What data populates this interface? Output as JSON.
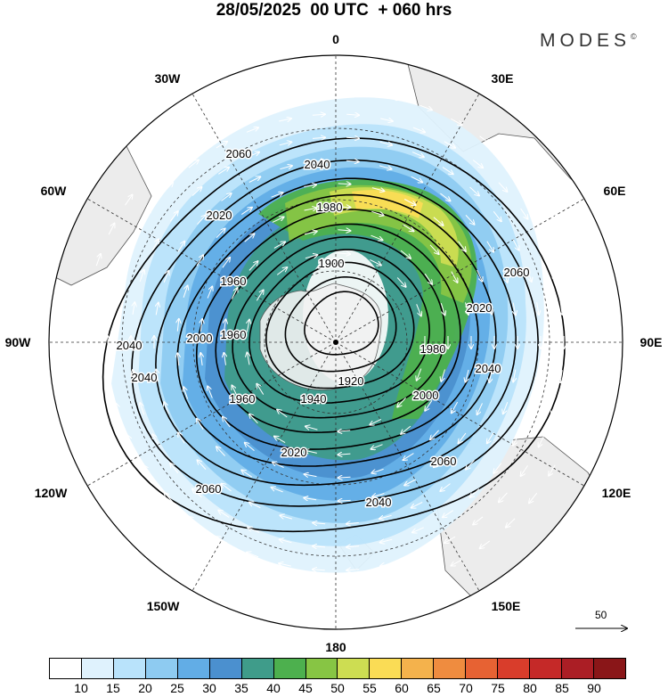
{
  "title": "28/05/2025  00 UTC  + 060 hrs",
  "brand": "MODES",
  "brand_mark": "©",
  "map": {
    "projection": "polar stereographic (south pole centered)",
    "longitude_labels": [
      {
        "id": "0",
        "text": "0"
      },
      {
        "id": "30e",
        "text": "30E"
      },
      {
        "id": "60e",
        "text": "60E"
      },
      {
        "id": "90e",
        "text": "90E"
      },
      {
        "id": "120e",
        "text": "120E"
      },
      {
        "id": "150e",
        "text": "150E"
      },
      {
        "id": "180",
        "text": "180"
      },
      {
        "id": "150w",
        "text": "150W"
      },
      {
        "id": "120w",
        "text": "120W"
      },
      {
        "id": "90w",
        "text": "90W"
      },
      {
        "id": "60w",
        "text": "60W"
      },
      {
        "id": "30w",
        "text": "30W"
      }
    ],
    "contour_labels": [
      "2060",
      "2040",
      "2020",
      "1980",
      "1960",
      "1900",
      "2000",
      "1920",
      "1940"
    ],
    "colors": {
      "land": "#ececec",
      "coast": "#555555",
      "contour": "#000000",
      "vector": "#ffffff"
    }
  },
  "reference_vector": {
    "label": "50"
  },
  "colorbar": {
    "colors": [
      "#ffffff",
      "#dff2fd",
      "#b9e3fb",
      "#8ecbf1",
      "#62ade6",
      "#4b90cf",
      "#3f9c8a",
      "#4db04e",
      "#87c544",
      "#cddd52",
      "#fadc55",
      "#f4b24c",
      "#ef8c3f",
      "#e76233",
      "#d93d2b",
      "#c52928",
      "#ab1e25",
      "#8a1618"
    ],
    "ticks": [
      "10",
      "15",
      "20",
      "25",
      "30",
      "35",
      "40",
      "45",
      "50",
      "55",
      "60",
      "65",
      "70",
      "75",
      "80",
      "85",
      "90"
    ]
  }
}
